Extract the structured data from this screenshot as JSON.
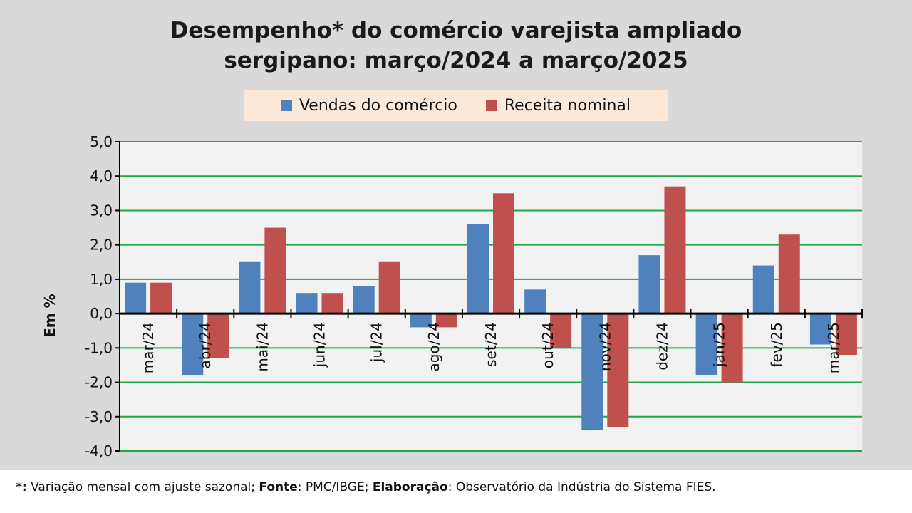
{
  "chart_data": {
    "type": "bar",
    "title_line1": "Desempenho* do comércio varejista ampliado",
    "title_line2": "sergipano: março/2024 a março/2025",
    "ylabel": "Em %",
    "xlabel": "",
    "ylim": [
      -4,
      5
    ],
    "yticks": [
      "5,0",
      "4,0",
      "3,0",
      "2,0",
      "1,0",
      "0,0",
      "-1,0",
      "-2,0",
      "-3,0",
      "-4,0"
    ],
    "ytick_values": [
      5,
      4,
      3,
      2,
      1,
      0,
      -1,
      -2,
      -3,
      -4
    ],
    "grid": true,
    "legend_position": "top-center",
    "categories": [
      "mar/24",
      "abr/24",
      "mai/24",
      "jun/24",
      "jul/24",
      "ago/24",
      "set/24",
      "out/24",
      "nov/24",
      "dez/24",
      "jan/25",
      "fev/25",
      "mar/25"
    ],
    "series": [
      {
        "name": "Vendas do comércio",
        "color": "#4f81bd",
        "values": [
          0.9,
          -1.8,
          1.5,
          0.6,
          0.8,
          -0.4,
          2.6,
          0.7,
          -3.4,
          1.7,
          -1.8,
          1.4,
          -0.9
        ]
      },
      {
        "name": "Receita nominal",
        "color": "#c0504d",
        "values": [
          0.9,
          -1.3,
          2.5,
          0.6,
          1.5,
          -0.4,
          3.5,
          -1.0,
          -3.3,
          3.7,
          -2.0,
          2.3,
          -1.2
        ]
      }
    ]
  },
  "footnote": {
    "star": "*:",
    "text1": " Variação mensal com ajuste sazonal; ",
    "fonte_label": "Fonte",
    "text2": ": PMC/IBGE; ",
    "elab_label": "Elaboração",
    "text3": ": Observatório da Indústria do Sistema FIES."
  }
}
